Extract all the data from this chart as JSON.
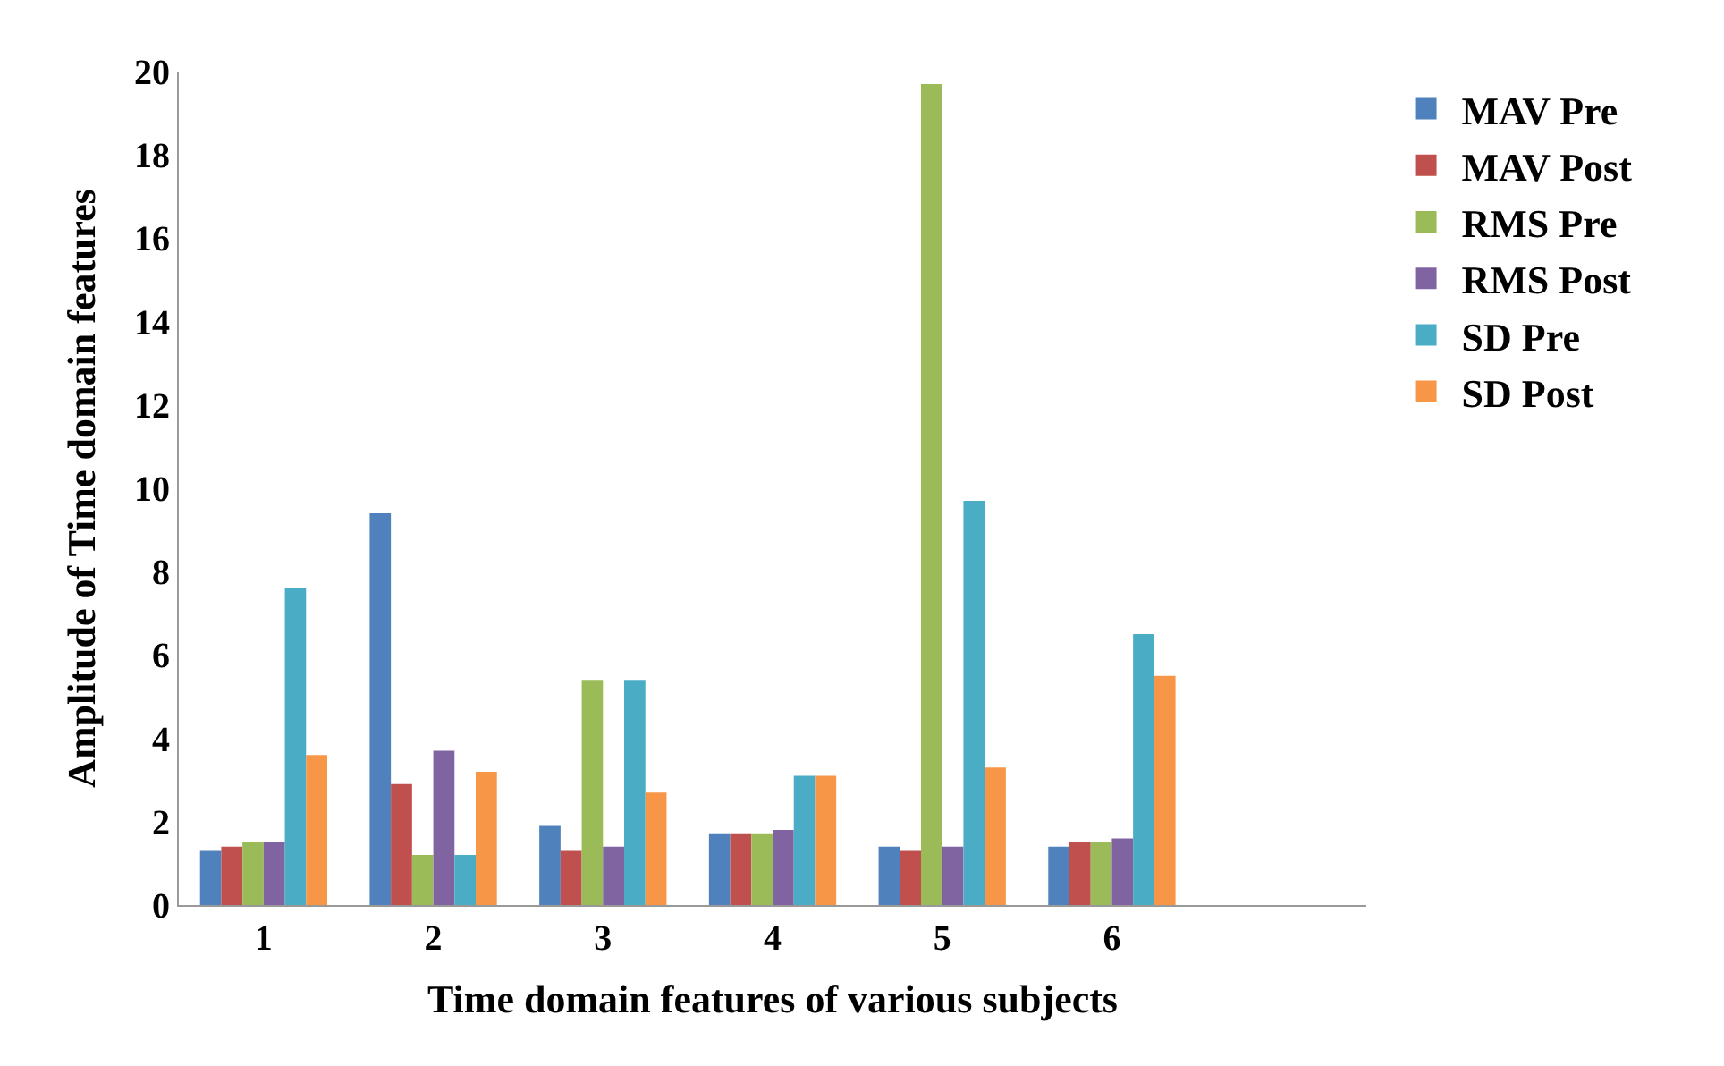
{
  "chart_data": {
    "type": "bar",
    "xlabel": "Time domain features of various subjects",
    "ylabel": "Amplitude of Time domain features",
    "categories": [
      "1",
      "2",
      "3",
      "4",
      "5",
      "6"
    ],
    "series": [
      {
        "name": "MAV Pre",
        "color": "#4f81bd",
        "values": [
          1.3,
          9.4,
          1.9,
          1.7,
          1.4,
          1.4
        ]
      },
      {
        "name": "MAV Post",
        "color": "#c0504d",
        "values": [
          1.4,
          2.9,
          1.3,
          1.7,
          1.3,
          1.5
        ]
      },
      {
        "name": "RMS Pre",
        "color": "#9bbb59",
        "values": [
          1.5,
          1.2,
          5.4,
          1.7,
          19.7,
          1.5
        ]
      },
      {
        "name": "RMS Post",
        "color": "#8064a2",
        "values": [
          1.5,
          3.7,
          1.4,
          1.8,
          1.4,
          1.6
        ]
      },
      {
        "name": "SD Pre",
        "color": "#4bacc6",
        "values": [
          7.6,
          1.2,
          5.4,
          3.1,
          9.7,
          6.5
        ]
      },
      {
        "name": "SD Post",
        "color": "#f79646",
        "values": [
          3.6,
          3.2,
          2.7,
          3.1,
          3.3,
          5.5
        ]
      }
    ],
    "ylim": [
      0,
      20
    ],
    "yticks": [
      0,
      2,
      4,
      6,
      8,
      10,
      12,
      14,
      16,
      18,
      20
    ],
    "legend": "right"
  }
}
